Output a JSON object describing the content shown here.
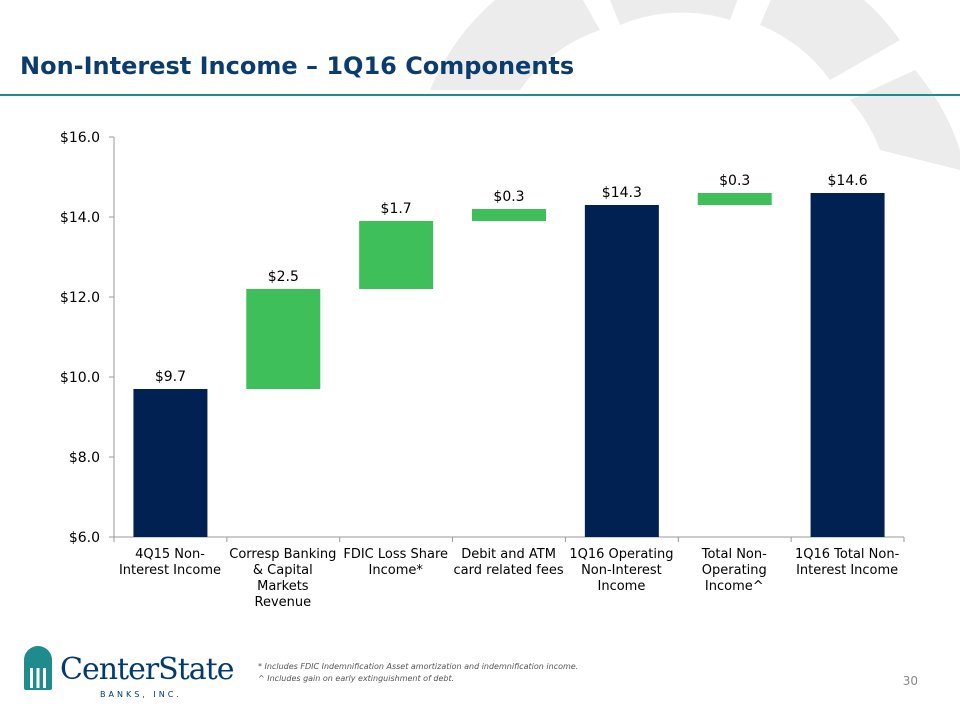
{
  "title": "Non-Interest Income – 1Q16 Components",
  "chart_data": {
    "type": "waterfall",
    "categories": [
      "4Q15 Non-Interest Income",
      "Corresp Banking & Capital Markets Revenue",
      "FDIC Loss Share Income*",
      "Debit and ATM card related fees",
      "1Q16 Operating Non-Interest Income",
      "Total Non-Operating Income^",
      "1Q16 Total Non-Interest Income"
    ],
    "values": [
      9.7,
      2.5,
      1.7,
      0.3,
      14.3,
      0.3,
      14.6
    ],
    "value_labels": [
      "$9.7",
      "$2.5",
      "$1.7",
      "$0.3",
      "$14.3",
      "$0.3",
      "$14.6"
    ],
    "measures": [
      "total",
      "increase",
      "increase",
      "increase",
      "total",
      "increase",
      "total"
    ],
    "colors": {
      "total": "#002152",
      "increase": "#3fbf5a"
    },
    "ylim": [
      6,
      16
    ],
    "yticks": [
      {
        "value": 6,
        "label": "$6.0"
      },
      {
        "value": 8,
        "label": "$8.0"
      },
      {
        "value": 10,
        "label": "$10.0"
      },
      {
        "value": 12,
        "label": "$12.0"
      },
      {
        "value": 14,
        "label": "$14.0"
      },
      {
        "value": 16,
        "label": "$16.0"
      }
    ]
  },
  "footnotes": [
    "*  Includes FDIC Indemnification Asset amortization and indemnification income.",
    "^  Includes gain on early extinguishment of debt."
  ],
  "page_number": "30",
  "logo": {
    "name": "CenterState",
    "subtitle": "BANKS, INC."
  }
}
